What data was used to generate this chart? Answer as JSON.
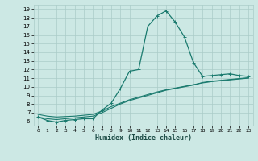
{
  "title": "",
  "xlabel": "Humidex (Indice chaleur)",
  "x_values": [
    0,
    1,
    2,
    3,
    4,
    5,
    6,
    7,
    8,
    9,
    10,
    11,
    12,
    13,
    14,
    15,
    16,
    17,
    18,
    19,
    20,
    21,
    22,
    23
  ],
  "line_main_y": [
    6.5,
    6.1,
    5.9,
    6.1,
    6.2,
    6.3,
    6.3,
    7.3,
    8.1,
    9.8,
    11.8,
    12.0,
    17.0,
    18.2,
    18.8,
    17.5,
    15.8,
    12.8,
    11.2,
    11.3,
    11.4,
    11.5,
    11.3,
    11.2
  ],
  "line_smooth1_y": [
    6.5,
    6.3,
    6.2,
    6.3,
    6.4,
    6.5,
    6.6,
    7.0,
    7.5,
    8.0,
    8.4,
    8.7,
    9.0,
    9.3,
    9.6,
    9.8,
    10.0,
    10.2,
    10.5,
    10.65,
    10.75,
    10.85,
    10.95,
    11.05
  ],
  "line_smooth2_y": [
    6.8,
    6.6,
    6.5,
    6.55,
    6.6,
    6.7,
    6.8,
    7.2,
    7.7,
    8.1,
    8.5,
    8.8,
    9.1,
    9.4,
    9.65,
    9.85,
    10.05,
    10.25,
    10.45,
    10.6,
    10.7,
    10.8,
    10.9,
    11.0
  ],
  "bg_color": "#cce8e4",
  "line_color": "#1a7a6e",
  "grid_color": "#aaccc8",
  "ylim": [
    5.5,
    19.5
  ],
  "xlim": [
    -0.5,
    23.5
  ],
  "yticks": [
    6,
    7,
    8,
    9,
    10,
    11,
    12,
    13,
    14,
    15,
    16,
    17,
    18,
    19
  ],
  "xticks": [
    0,
    1,
    2,
    3,
    4,
    5,
    6,
    7,
    8,
    9,
    10,
    11,
    12,
    13,
    14,
    15,
    16,
    17,
    18,
    19,
    20,
    21,
    22,
    23
  ]
}
